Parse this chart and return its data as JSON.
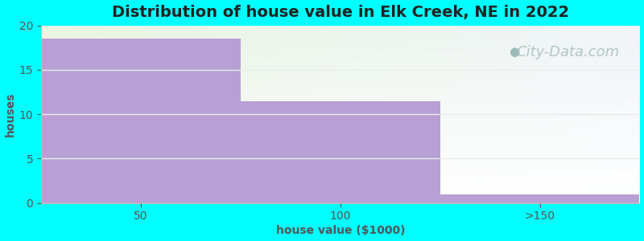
{
  "title": "Distribution of house value in Elk Creek, NE in 2022",
  "xlabel": "house value ($1000)",
  "ylabel": "houses",
  "categories": [
    "50",
    "100",
    ">150"
  ],
  "values": [
    18.5,
    11.5,
    1.0
  ],
  "bar_color": "#b89fd4",
  "ylim": [
    0,
    20
  ],
  "yticks": [
    0,
    5,
    10,
    15,
    20
  ],
  "background_outer": "#00ffff",
  "title_fontsize": 14,
  "axis_label_fontsize": 10,
  "tick_fontsize": 10,
  "watermark_text": "City-Data.com",
  "watermark_color": "#a8bfb8",
  "watermark_fontsize": 13,
  "grid_color": "#e8eeea",
  "spine_color": "#bbbbbb"
}
